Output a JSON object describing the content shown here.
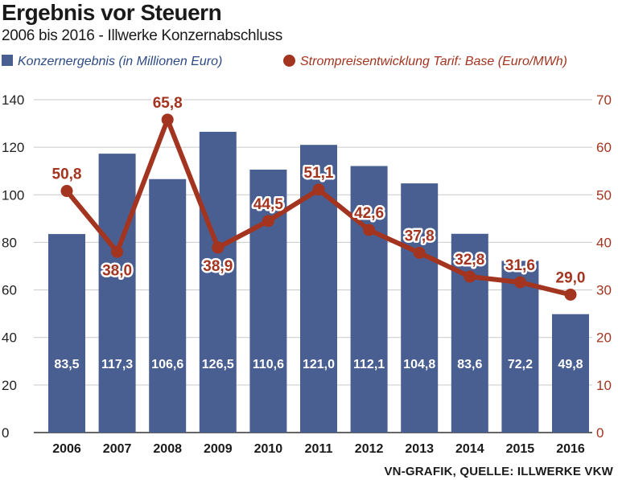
{
  "header": {
    "title": "Ergebnis vor Steuern",
    "subtitle": "2006 bis 2016 - Illwerke Konzernabschluss"
  },
  "legend": {
    "bars": "Konzernergebnis (in Millionen Euro)",
    "line": "Strompreisentwicklung Tarif: Base (Euro/MWh)"
  },
  "source": "VN-GRAFIK, QUELLE: ILLWERKE VKW",
  "colors": {
    "bar": "#4a5f91",
    "line": "#a3341f",
    "grid": "#c9c9c9"
  },
  "chart_data": {
    "type": "bar",
    "title": "Ergebnis vor Steuern",
    "categories": [
      "2006",
      "2007",
      "2008",
      "2009",
      "2010",
      "2011",
      "2012",
      "2013",
      "2014",
      "2015",
      "2016"
    ],
    "series": [
      {
        "name": "Konzernergebnis (in Millionen Euro)",
        "type": "bar",
        "axis": "left",
        "values": [
          83.5,
          117.3,
          106.6,
          126.5,
          110.6,
          121.0,
          112.1,
          104.8,
          83.6,
          72.2,
          49.8
        ],
        "labels": [
          "83,5",
          "117,3",
          "106,6",
          "126,5",
          "110,6",
          "121,0",
          "112,1",
          "104,8",
          "83,6",
          "72,2",
          "49,8"
        ]
      },
      {
        "name": "Strompreisentwicklung Tarif: Base (Euro/MWh)",
        "type": "line",
        "axis": "right",
        "values": [
          50.8,
          38.0,
          65.8,
          38.9,
          44.5,
          51.1,
          42.6,
          37.8,
          32.8,
          31.6,
          29.0
        ],
        "labels": [
          "50,8",
          "38,0",
          "65,8",
          "38,9",
          "44,5",
          "51,1",
          "42,6",
          "37,8",
          "32,8",
          "31,6",
          "29,0"
        ]
      }
    ],
    "ylim_left": [
      0,
      140
    ],
    "yticks_left": [
      "0",
      "20",
      "40",
      "60",
      "80",
      "100",
      "120",
      "140"
    ],
    "ylim_right": [
      0,
      70
    ],
    "yticks_right": [
      "0",
      "10",
      "20",
      "30",
      "40",
      "50",
      "60",
      "70"
    ],
    "grid": true
  }
}
